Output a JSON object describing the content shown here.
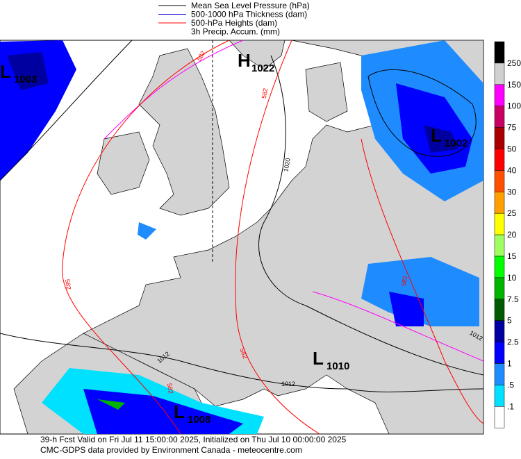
{
  "legend": [
    {
      "label": "Mean Sea Level Pressure (hPa)"
    },
    {
      "label": "500-1000 hPa Thickness (dam)"
    },
    {
      "label": "500-hPa Heights (dam)"
    },
    {
      "label": "3h Precip. Accum. (mm)"
    }
  ],
  "pressure_centers": [
    {
      "letter": "H",
      "value": "1022"
    },
    {
      "letter": "L",
      "value": "1003"
    },
    {
      "letter": "L",
      "value": "1002"
    },
    {
      "letter": "L",
      "value": "1010"
    },
    {
      "letter": "L",
      "value": "1008"
    }
  ],
  "contour_labels": [
    "582",
    "582",
    "582",
    "582",
    "582",
    "582",
    "1020",
    "1012",
    "1012",
    "1012"
  ],
  "colorbar": {
    "labels": [
      "250",
      "150",
      "100",
      "75",
      "50",
      "40",
      "30",
      "25",
      "20",
      "15",
      "10",
      "7.5",
      "5",
      "2.5",
      "1",
      ".5",
      ".1"
    ]
  },
  "footer": [
    "39-h Fcst Valid on Fri Jul 11 15:00:00 2025, Initialized on Thu Jul 10 00:00:00 2025",
    "CMC-GDPS data provided by Environment Canada - meteocentre.com"
  ]
}
